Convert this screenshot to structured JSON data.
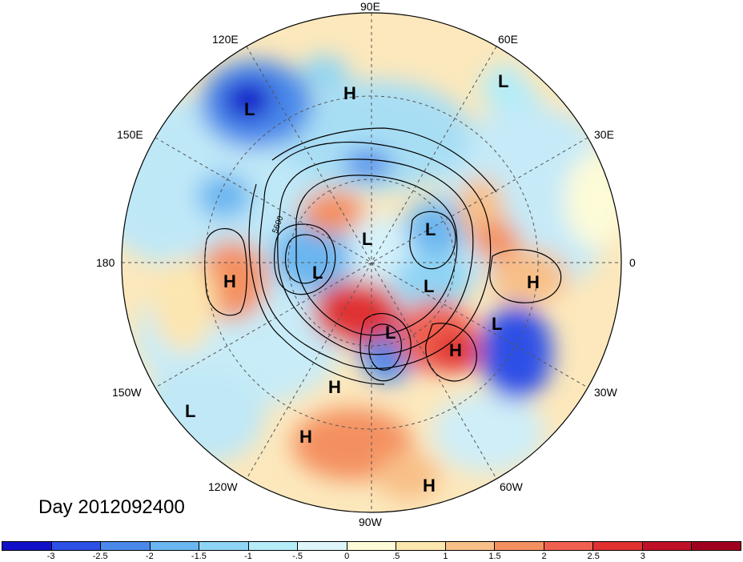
{
  "title": "Day 2012092400",
  "longitudes": [
    {
      "id": "90e",
      "label": "90E"
    },
    {
      "id": "60e",
      "label": "60E"
    },
    {
      "id": "120e",
      "label": "120E"
    },
    {
      "id": "150e",
      "label": "150E"
    },
    {
      "id": "30e",
      "label": "30E"
    },
    {
      "id": "180",
      "label": "180"
    },
    {
      "id": "0",
      "label": "0"
    },
    {
      "id": "150w",
      "label": "150W"
    },
    {
      "id": "30w",
      "label": "30W"
    },
    {
      "id": "120w",
      "label": "120W"
    },
    {
      "id": "60w",
      "label": "60W"
    },
    {
      "id": "90w",
      "label": "90W"
    }
  ],
  "pressure_centers": [
    "L",
    "H",
    "L",
    "L",
    "L",
    "L",
    "H",
    "L",
    "H",
    "L",
    "H",
    "H",
    "L",
    "H",
    "L",
    "H"
  ],
  "contour_label": "5600",
  "colorbar": {
    "colors": [
      "#1010c8",
      "#2d50e6",
      "#4a88ea",
      "#6ab6f0",
      "#8ed4f4",
      "#b4ecf8",
      "#def6fa",
      "#fdfbd8",
      "#fce6b0",
      "#f8c088",
      "#f49060",
      "#f06050",
      "#e03030",
      "#c01028",
      "#a00020"
    ],
    "ticks": [
      "-3",
      "-2.5",
      "-2",
      "-1.5",
      "-1",
      "-.5",
      "0",
      ".5",
      "1",
      "1.5",
      "2",
      "2.5",
      "3"
    ]
  }
}
